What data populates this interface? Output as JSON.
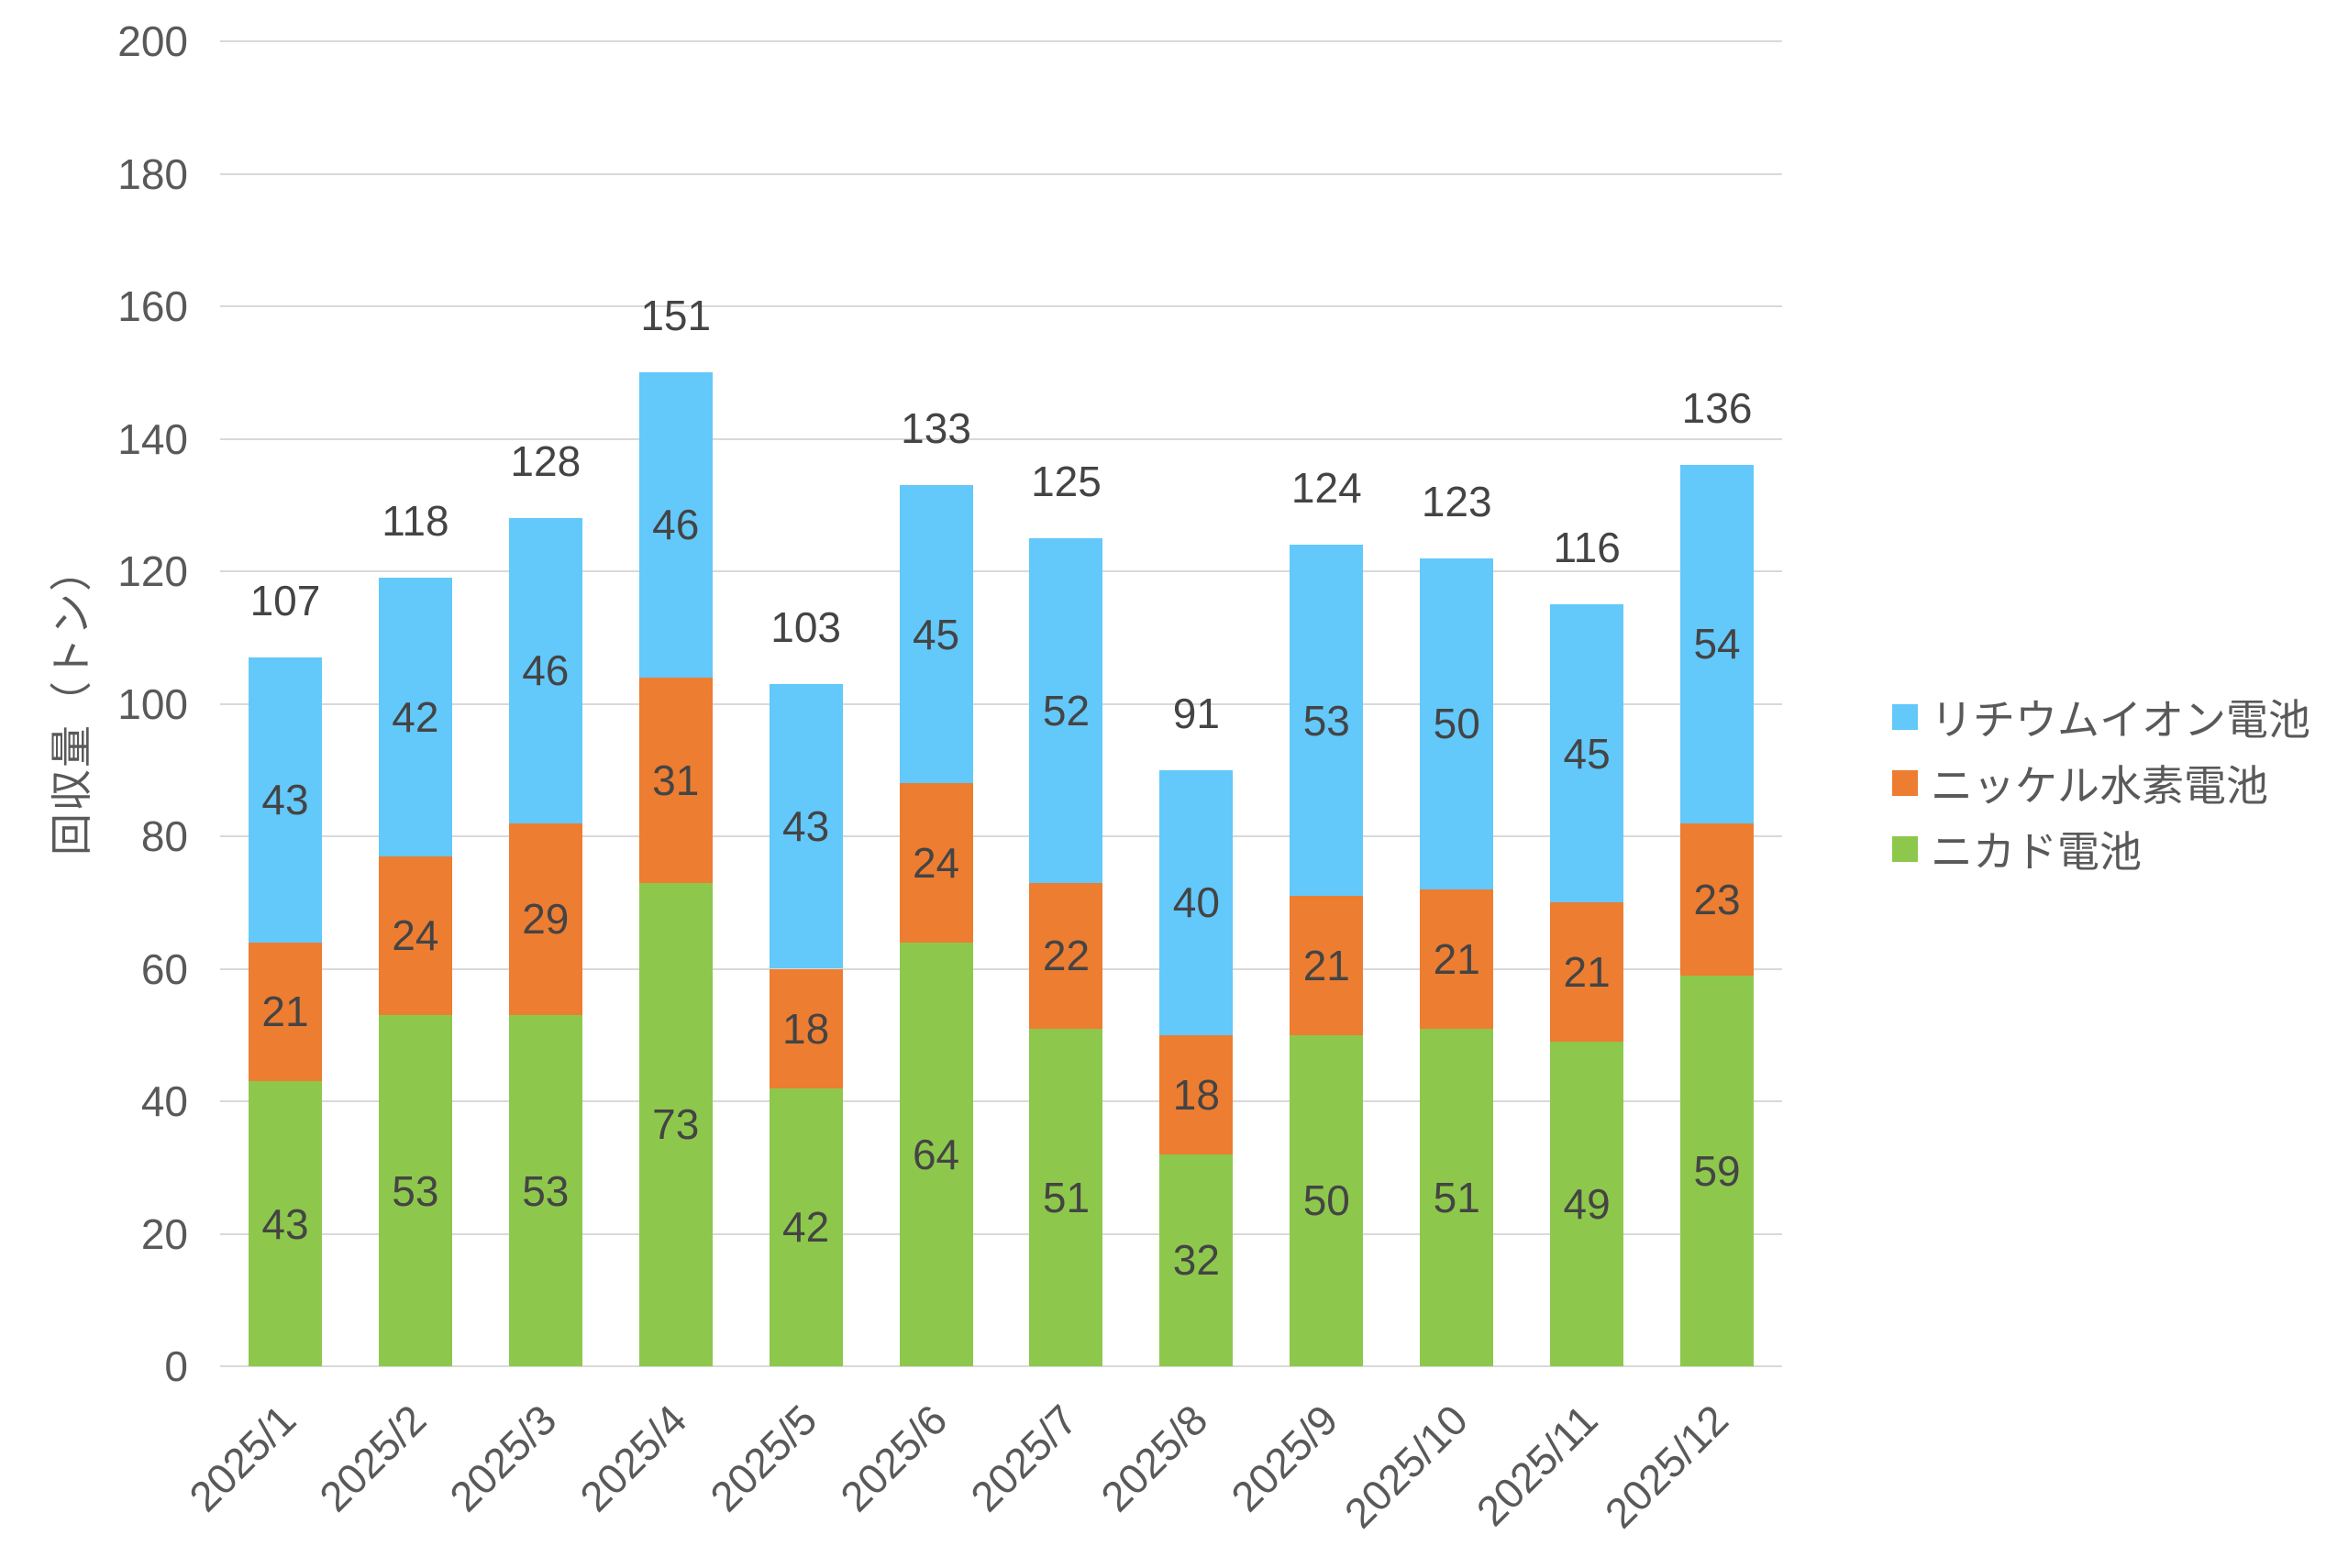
{
  "chart_data": {
    "type": "bar",
    "stacked": true,
    "orientation": "vertical",
    "title": "",
    "xlabel": "",
    "ylabel": "回収量（トン）",
    "ylim": [
      0,
      200
    ],
    "ytick_step": 20,
    "grid": "horizontal",
    "gridline_color": "#D9D9D9",
    "legend_position": "right",
    "categories": [
      "2025/1",
      "2025/2",
      "2025/3",
      "2025/4",
      "2025/5",
      "2025/6",
      "2025/7",
      "2025/8",
      "2025/9",
      "2025/10",
      "2025/11",
      "2025/12"
    ],
    "series": [
      {
        "name": "ニカド電池",
        "color": "#8DC84C",
        "values": [
          43,
          53,
          53,
          73,
          42,
          64,
          51,
          32,
          50,
          51,
          49,
          59
        ]
      },
      {
        "name": "ニッケル水素電池",
        "color": "#ED7D31",
        "values": [
          21,
          24,
          29,
          31,
          18,
          24,
          22,
          18,
          21,
          21,
          21,
          23
        ]
      },
      {
        "name": "リチウムイオン電池",
        "color": "#63C8FA",
        "values": [
          43,
          42,
          46,
          46,
          43,
          45,
          52,
          40,
          53,
          50,
          45,
          54
        ]
      }
    ],
    "totals": [
      107,
      118,
      128,
      151,
      103,
      133,
      125,
      91,
      124,
      123,
      116,
      136
    ],
    "legend_items": [
      {
        "label": "リチウムイオン電池",
        "color": "#63C8FA"
      },
      {
        "label": "ニッケル水素電池",
        "color": "#ED7D31"
      },
      {
        "label": "ニカド電池",
        "color": "#8DC84C"
      }
    ],
    "text_colors": {
      "axis": "#595959",
      "data_label": "#444444"
    }
  }
}
